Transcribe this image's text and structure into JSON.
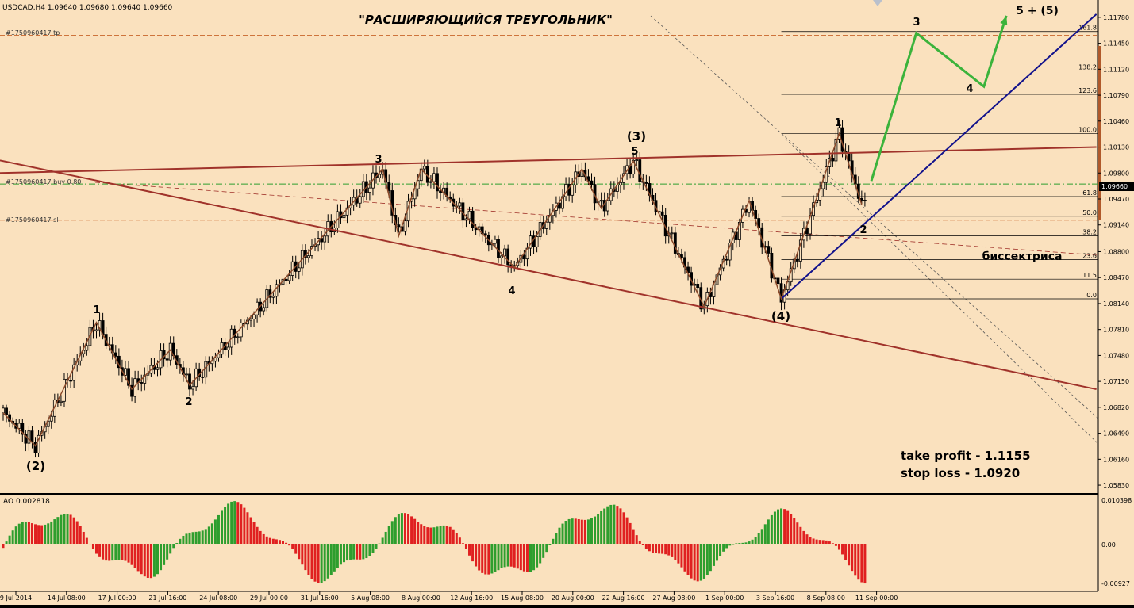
{
  "header": {
    "symbol_line": "USDCAD,H4  1.09640 1.09680 1.09640 1.09660",
    "title": "\"РАСШИРЯЮЩИЙСЯ  ТРЕУГОЛЬНИК\""
  },
  "colors": {
    "background": "#FAE1BE",
    "bull_candle": "#8B4513",
    "ao_up": "#2E9E2E",
    "ao_down": "#E02020",
    "triangle_lines": "#A0322A",
    "wave_lines": "#8B4A2A",
    "forecast": "#3BB33B",
    "channel": "#12128C"
  },
  "order_lines": {
    "tp": "#1750960417 tp",
    "buy": "#1750960417 buy 0.80",
    "sl": "#1750960417 sl"
  },
  "fib_levels": [
    "161.8",
    "138.2",
    "123.6",
    "100.0",
    "61.8",
    "50.0",
    "38.2",
    "23.6",
    "11.5",
    "0.0"
  ],
  "wave_labels": [
    "1",
    "2",
    "(2)",
    "3",
    "4",
    "(3)",
    "5",
    "(4)",
    "1",
    "2",
    "3",
    "4",
    "5 + (5)"
  ],
  "annotations": {
    "bisector": "биссектриса",
    "take_profit": "take profit - 1.1155",
    "stop_loss": "stop loss - 1.0920"
  },
  "current_price": "1.09660",
  "ao": {
    "label": "AO 0.002818",
    "ticks": [
      "0.010398",
      "0.00",
      "-0.00927"
    ]
  },
  "chart_data": {
    "type": "line",
    "title": "\"РАСШИРЯЮЩИЙСЯ  ТРЕУГОЛЬНИК\"",
    "price_axis_ticks": [
      "1.11780",
      "1.11450",
      "1.11120",
      "1.10790",
      "1.10460",
      "1.10130",
      "1.09800",
      "1.09470",
      "1.09140",
      "1.08800",
      "1.08470",
      "1.08140",
      "1.07810",
      "1.07480",
      "1.07150",
      "1.06820",
      "1.06490",
      "1.06160",
      "1.05830"
    ],
    "time_axis_ticks": [
      "9 Jul 2014",
      "14 Jul 08:00",
      "17 Jul 00:00",
      "21 Jul 16:00",
      "24 Jul 08:00",
      "29 Jul 00:00",
      "31 Jul 16:00",
      "5 Aug 08:00",
      "8 Aug 00:00",
      "12 Aug 16:00",
      "15 Aug 08:00",
      "20 Aug 00:00",
      "22 Aug 16:00",
      "27 Aug 08:00",
      "1 Sep 00:00",
      "3 Sep 16:00",
      "8 Sep 08:00",
      "11 Sep 00:00"
    ],
    "ylim": [
      1.0575,
      1.1195
    ],
    "x_count": 270,
    "waves": [
      {
        "x": 0,
        "y": 1.0675
      },
      {
        "x": 10,
        "y": 1.0633
      },
      {
        "x": 29,
        "y": 1.079
      },
      {
        "x": 40,
        "y": 1.0705
      },
      {
        "x": 52,
        "y": 1.0755
      },
      {
        "x": 58,
        "y": 1.071
      },
      {
        "x": 118,
        "y": 1.0985
      },
      {
        "x": 123,
        "y": 1.09
      },
      {
        "x": 130,
        "y": 1.0985
      },
      {
        "x": 159,
        "y": 1.086
      },
      {
        "x": 180,
        "y": 1.0985
      },
      {
        "x": 186,
        "y": 1.0935
      },
      {
        "x": 196,
        "y": 1.0995
      },
      {
        "x": 218,
        "y": 1.081
      },
      {
        "x": 232,
        "y": 1.0945
      },
      {
        "x": 242,
        "y": 1.082
      },
      {
        "x": 260,
        "y": 1.103
      },
      {
        "x": 267,
        "y": 1.094
      }
    ],
    "forecast": [
      {
        "x": 270,
        "y": 1.097
      },
      {
        "x": 284,
        "y": 1.1158
      },
      {
        "x": 305,
        "y": 1.109
      },
      {
        "x": 312,
        "y": 1.118
      }
    ],
    "trendlines": [
      {
        "name": "upper",
        "from": {
          "x": -1,
          "y": 1.098
        },
        "to": {
          "x": 340,
          "y": 1.1013
        }
      },
      {
        "name": "lower",
        "from": {
          "x": -1,
          "y": 1.0996
        },
        "to": {
          "x": 340,
          "y": 1.0705
        }
      },
      {
        "name": "channel",
        "from": {
          "x": 242,
          "y": 1.082
        },
        "to": {
          "x": 340,
          "y": 1.1182
        }
      }
    ],
    "order_levels": {
      "tp": 1.1155,
      "buy": 1.0966,
      "sl": 1.092
    },
    "fib": {
      "x_start": 242,
      "x_end": 340,
      "levels": [
        {
          "label": "161.8",
          "y": 1.116
        },
        {
          "label": "138.2",
          "y": 1.111
        },
        {
          "label": "123.6",
          "y": 1.108
        },
        {
          "label": "100.0",
          "y": 1.103
        },
        {
          "label": "61.8",
          "y": 1.095
        },
        {
          "label": "50.0",
          "y": 1.0925
        },
        {
          "label": "38.2",
          "y": 1.09
        },
        {
          "label": "23.6",
          "y": 1.087
        },
        {
          "label": "11.5",
          "y": 1.0845
        },
        {
          "label": "0.0",
          "y": 1.082
        }
      ]
    }
  }
}
